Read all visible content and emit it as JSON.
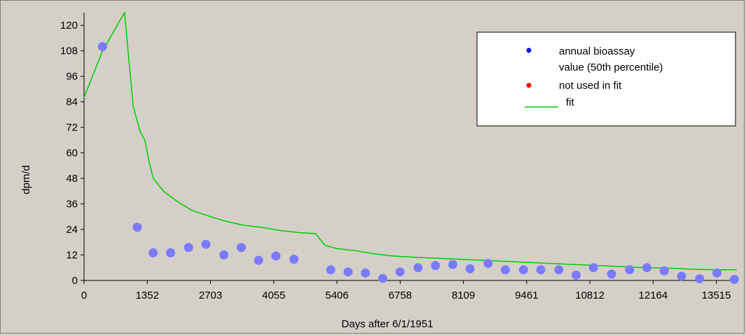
{
  "chart_data": {
    "type": "scatter",
    "title": "",
    "xlabel": "Days after 6/1/1951",
    "ylabel": "dpm/d",
    "xlim": [
      0,
      13850
    ],
    "ylim": [
      0,
      126
    ],
    "x_ticks": [
      0,
      1352,
      2703,
      4055,
      5406,
      6758,
      8109,
      9461,
      10812,
      12164,
      13515
    ],
    "y_ticks": [
      0,
      12,
      24,
      36,
      48,
      60,
      72,
      84,
      96,
      108,
      120
    ],
    "grid": false,
    "legend_position": "top-right",
    "legend": [
      {
        "label": "annual bioassay",
        "label_line2": "value (50th percentile)",
        "marker": "dot",
        "color": "#0000ff"
      },
      {
        "label": "not used in fit",
        "marker": "dot",
        "color": "#ff0000"
      },
      {
        "label": "fit",
        "marker": "line",
        "color": "#00cc00"
      }
    ],
    "series": [
      {
        "name": "annual bioassay value (50th percentile)",
        "color": "#7b7bff",
        "points": [
          [
            395,
            110
          ],
          [
            1137,
            25
          ],
          [
            1477,
            13
          ],
          [
            1848,
            13
          ],
          [
            2234,
            15.5
          ],
          [
            2604,
            17
          ],
          [
            2990,
            12
          ],
          [
            3360,
            15.5
          ],
          [
            3731,
            9.5
          ],
          [
            4101,
            11.5
          ],
          [
            4487,
            10
          ],
          [
            5273,
            5
          ],
          [
            5644,
            4
          ],
          [
            6014,
            3.5
          ],
          [
            6384,
            1
          ],
          [
            6754,
            4
          ],
          [
            7140,
            6
          ],
          [
            7511,
            7
          ],
          [
            7881,
            7.5
          ],
          [
            8251,
            5.5
          ],
          [
            8637,
            8
          ],
          [
            9007,
            5
          ],
          [
            9393,
            5
          ],
          [
            9763,
            5
          ],
          [
            10149,
            5
          ],
          [
            10519,
            2.5
          ],
          [
            10889,
            6
          ],
          [
            11275,
            3
          ],
          [
            11661,
            5
          ],
          [
            12031,
            6
          ],
          [
            12402,
            4.5
          ],
          [
            12772,
            2
          ],
          [
            13158,
            0.8
          ],
          [
            13528,
            3.5
          ],
          [
            13899,
            0.5
          ]
        ]
      },
      {
        "name": "fit",
        "color": "#00cc00",
        "points": [
          [
            0,
            86
          ],
          [
            395,
            108
          ],
          [
            865,
            126
          ],
          [
            1050,
            82
          ],
          [
            1200,
            70
          ],
          [
            1300,
            66
          ],
          [
            1400,
            55
          ],
          [
            1480,
            48
          ],
          [
            1700,
            42
          ],
          [
            2000,
            37
          ],
          [
            2300,
            33
          ],
          [
            2700,
            30
          ],
          [
            3000,
            28
          ],
          [
            3400,
            26
          ],
          [
            3800,
            25
          ],
          [
            4200,
            23.5
          ],
          [
            4600,
            22.5
          ],
          [
            4950,
            22
          ],
          [
            5150,
            16.5
          ],
          [
            5400,
            15
          ],
          [
            5800,
            14
          ],
          [
            6200,
            12.5
          ],
          [
            6600,
            11.5
          ],
          [
            7000,
            11
          ],
          [
            7500,
            10.5
          ],
          [
            8000,
            10
          ],
          [
            8500,
            9.5
          ],
          [
            9000,
            9
          ],
          [
            9500,
            8.5
          ],
          [
            10000,
            8
          ],
          [
            10500,
            7.5
          ],
          [
            11000,
            7
          ],
          [
            11500,
            6.5
          ],
          [
            12000,
            6
          ],
          [
            12500,
            5.8
          ],
          [
            13000,
            5.3
          ],
          [
            13500,
            5
          ],
          [
            13950,
            5
          ]
        ]
      }
    ]
  }
}
